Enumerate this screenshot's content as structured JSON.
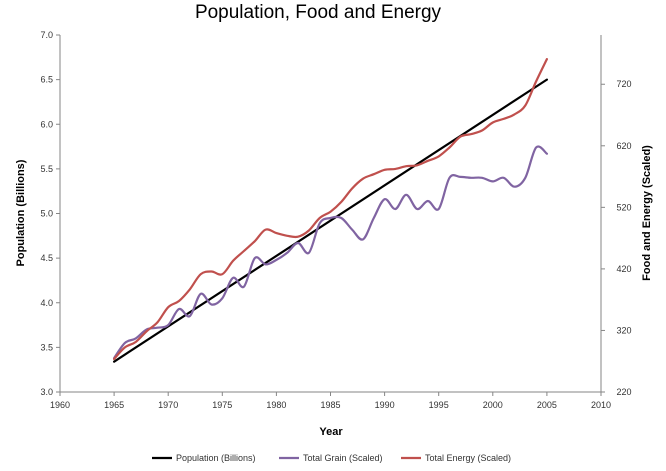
{
  "chart_data": {
    "type": "line",
    "title": "Population, Food and Energy",
    "xlabel": "Year",
    "ylabel": "Population (Billions)",
    "y2label": "Food and Energy (Scaled)",
    "xlim": [
      1960,
      2010
    ],
    "ylim": [
      3.0,
      7.0
    ],
    "y2lim": [
      220,
      800
    ],
    "x_ticks": [
      1960,
      1965,
      1970,
      1975,
      1980,
      1985,
      1990,
      1995,
      2000,
      2005,
      2010
    ],
    "y_ticks": [
      "3.0",
      "3.5",
      "4.0",
      "4.5",
      "5.0",
      "5.5",
      "6.0",
      "6.5",
      "7.0"
    ],
    "y2_ticks": [
      220,
      320,
      420,
      520,
      620,
      720
    ],
    "grid": false,
    "legend_position": "bottom",
    "colors": {
      "population": "#000000",
      "grain": "#8064A2",
      "energy": "#C0504D",
      "axis": "#868686"
    },
    "x": [
      1965,
      1966,
      1967,
      1968,
      1969,
      1970,
      1971,
      1972,
      1973,
      1974,
      1975,
      1976,
      1977,
      1978,
      1979,
      1980,
      1981,
      1982,
      1983,
      1984,
      1985,
      1986,
      1987,
      1988,
      1989,
      1990,
      1991,
      1992,
      1993,
      1994,
      1995,
      1996,
      1997,
      1998,
      1999,
      2000,
      2001,
      2002,
      2003,
      2004,
      2005
    ],
    "series": [
      {
        "name": "Population (Billions)",
        "axis": "left",
        "values": [
          3.34,
          3.42,
          3.49,
          3.56,
          3.63,
          3.7,
          3.78,
          3.86,
          3.93,
          4.0,
          4.08,
          4.15,
          4.23,
          4.3,
          4.38,
          4.46,
          4.54,
          4.62,
          4.7,
          4.78,
          4.87,
          4.95,
          5.04,
          5.13,
          5.22,
          5.31,
          5.39,
          5.48,
          5.56,
          5.64,
          5.72,
          5.8,
          5.88,
          5.95,
          6.03,
          6.11,
          6.19,
          6.26,
          6.34,
          6.42,
          6.5
        ]
      },
      {
        "name": "Total Grain (Scaled)",
        "axis": "left",
        "values": [
          3.38,
          3.55,
          3.6,
          3.7,
          3.72,
          3.75,
          3.93,
          3.85,
          4.1,
          3.98,
          4.05,
          4.28,
          4.18,
          4.5,
          4.43,
          4.48,
          4.56,
          4.67,
          4.56,
          4.89,
          4.95,
          4.95,
          4.82,
          4.71,
          4.95,
          5.16,
          5.05,
          5.21,
          5.05,
          5.14,
          5.05,
          5.4,
          5.41,
          5.4,
          5.4,
          5.36,
          5.4,
          5.3,
          5.4,
          5.74,
          5.67
        ]
      },
      {
        "name": "Total Energy (Scaled)",
        "axis": "left",
        "values": [
          3.37,
          3.5,
          3.56,
          3.68,
          3.78,
          3.95,
          4.02,
          4.15,
          4.32,
          4.35,
          4.32,
          4.47,
          4.58,
          4.69,
          4.82,
          4.78,
          4.75,
          4.74,
          4.81,
          4.95,
          5.02,
          5.13,
          5.28,
          5.39,
          5.44,
          5.49,
          5.5,
          5.53,
          5.54,
          5.59,
          5.64,
          5.74,
          5.86,
          5.89,
          5.93,
          6.02,
          6.06,
          6.11,
          6.21,
          6.48,
          6.73
        ]
      }
    ]
  }
}
